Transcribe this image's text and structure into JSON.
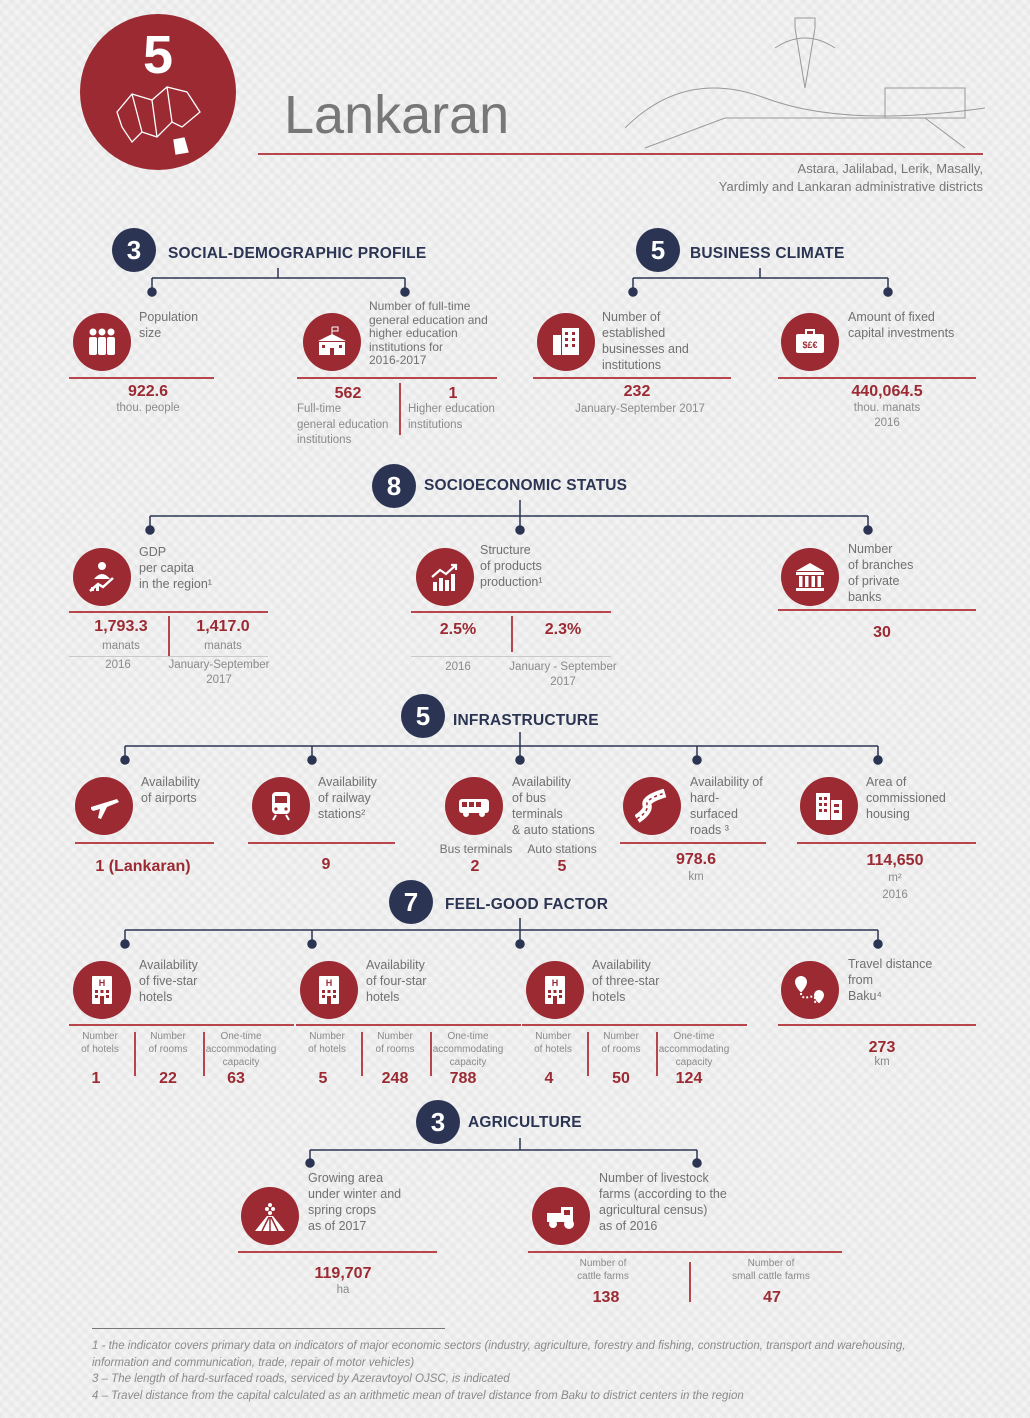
{
  "header": {
    "number": "5",
    "title": "Lankaran",
    "subtitle": "Astara, Jalilabad, Lerik, Masally,\nYardimly and Lankaran administrative districts",
    "accent": "#9b2a33",
    "navy": "#2b3553"
  },
  "social": {
    "count": "3",
    "title": "SOCIAL-DEMOGRAPHIC PROFILE",
    "population": {
      "label": "Population\nsize",
      "value": "922.6",
      "unit": "thou. people"
    },
    "education": {
      "label": "Number of full-time\ngeneral education and\nhigher education\ninstitutions for\n2016-2017",
      "v1": "562",
      "l1": "Full-time\ngeneral education\ninstitutions",
      "v2": "1",
      "l2": "Higher education\ninstitutions"
    }
  },
  "business": {
    "count": "5",
    "title": "BUSINESS CLIMATE",
    "businesses": {
      "label": "Number of\nestablished\nbusinesses and\ninstitutions",
      "value": "232",
      "unit": "January-September 2017"
    },
    "investments": {
      "label": "Amount of fixed\ncapital investments",
      "value": "440,064.5",
      "unit": "thou. manats\n2016"
    }
  },
  "socio": {
    "count": "8",
    "title": "SOCIOECONOMIC STATUS",
    "gdp": {
      "label": "GDP\nper capita\nin the region¹",
      "v1": "1,793.3",
      "v2": "1,417.0",
      "u1": "manats",
      "u2": "manats",
      "p1": "2016",
      "p2": "January-September\n2017"
    },
    "structure": {
      "label": "Structure\nof products\nproduction¹",
      "v1": "2.5%",
      "v2": "2.3%",
      "p1": "2016",
      "p2": "January - September\n2017"
    },
    "banks": {
      "label": "Number\nof branches\nof private\nbanks",
      "value": "30"
    }
  },
  "infra": {
    "count": "5",
    "title": "INFRASTRUCTURE",
    "airports": {
      "label": "Availability\nof airports",
      "value": "1 (Lankaran)"
    },
    "railway": {
      "label": "Availability\nof railway\nstations²",
      "value": "9"
    },
    "bus": {
      "label": "Availability\nof bus\nterminals\n& auto stations",
      "l1": "Bus terminals",
      "v1": "2",
      "l2": "Auto stations",
      "v2": "5"
    },
    "roads": {
      "label": "Availability of\nhard-\nsurfaced\nroads ³",
      "value": "978.6",
      "unit": "km"
    },
    "housing": {
      "label": "Area of\ncommissioned\nhousing",
      "value": "114,650",
      "unit": "m²\n2016"
    }
  },
  "feel": {
    "count": "7",
    "title": "FEEL-GOOD FACTOR",
    "hotels": [
      {
        "label": "Availability\nof five-star\nhotels",
        "hotels": "1",
        "rooms": "22",
        "capacity": "63"
      },
      {
        "label": "Availability\nof four-star\nhotels",
        "hotels": "5",
        "rooms": "248",
        "capacity": "788"
      },
      {
        "label": "Availability\nof three-star\nhotels",
        "hotels": "4",
        "rooms": "50",
        "capacity": "124"
      }
    ],
    "col_hotels": "Number\nof hotels",
    "col_rooms": "Number\nof rooms",
    "col_capacity": "One-time\naccommodating\ncapacity",
    "travel": {
      "label": "Travel distance\nfrom\nBaku⁴",
      "value": "273",
      "unit": "km"
    }
  },
  "agri": {
    "count": "3",
    "title": "AGRICULTURE",
    "area": {
      "label": "Growing area\nunder winter and\nspring crops\nas of 2017",
      "value": "119,707",
      "unit": "ha"
    },
    "livestock": {
      "label": "Number of livestock\nfarms (according to the\nagricultural census)\nas of 2016",
      "l1": "Number of\ncattle farms",
      "v1": "138",
      "l2": "Number of\nsmall cattle farms",
      "v2": "47"
    }
  },
  "footnotes": "1 - the indicator covers primary data on indicators of major economic sectors (industry, agriculture, forestry and fishing, construction, transport and warehousing,\ninformation and communication, trade, repair of  motor vehicles)\n3 – The length of hard-surfaced roads, serviced by Azeravtoyol OJSC, is indicated\n4 – Travel distance from the capital calculated as an arithmetic mean of travel distance from Baku to district centers in the region"
}
